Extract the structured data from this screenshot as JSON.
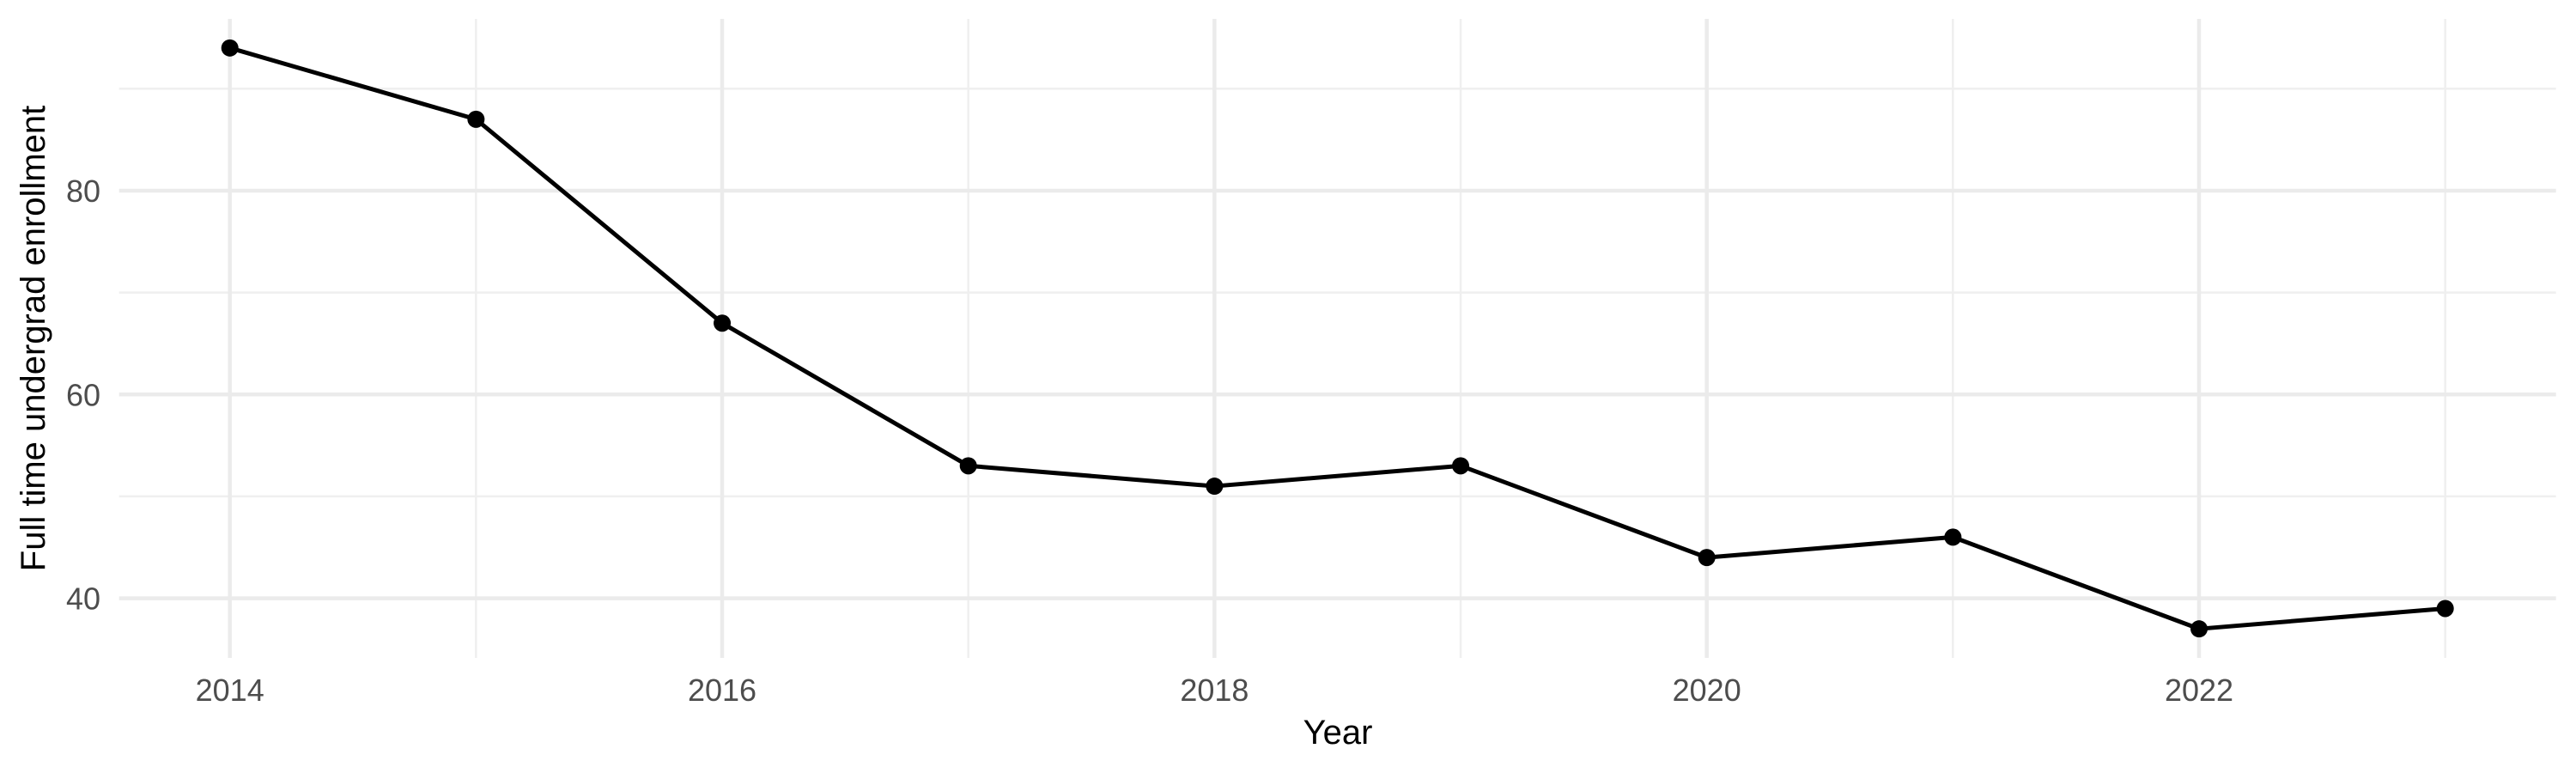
{
  "chart_data": {
    "type": "line",
    "title": "",
    "xlabel": "Year",
    "ylabel": "Full time undergrad enrollment",
    "x": [
      2014,
      2015,
      2016,
      2017,
      2018,
      2019,
      2020,
      2021,
      2022,
      2023
    ],
    "values": [
      94,
      87,
      67,
      53,
      51,
      53,
      44,
      46,
      37,
      39
    ],
    "x_tick_labels": [
      "2014",
      "2016",
      "2018",
      "2020",
      "2022"
    ],
    "x_major_gridlines": [
      2014,
      2016,
      2018,
      2020,
      2022
    ],
    "x_minor_gridlines": [
      2015,
      2017,
      2019,
      2021,
      2023
    ],
    "y_tick_labels": [
      "40",
      "60",
      "80"
    ],
    "y_major_gridlines": [
      40,
      60,
      80
    ],
    "y_minor_gridlines": [
      50,
      70,
      90
    ],
    "xlim": [
      2013.55,
      2023.45
    ],
    "ylim": [
      34.15,
      96.85
    ],
    "grid": true,
    "legend": "none",
    "colors": {
      "line": "#000000",
      "point": "#000000",
      "grid_major": "#EBEBEB",
      "grid_minor": "#EFEFEF",
      "tick_label": "#4D4D4D",
      "axis_title": "#000000",
      "background": "#FFFFFF"
    }
  }
}
